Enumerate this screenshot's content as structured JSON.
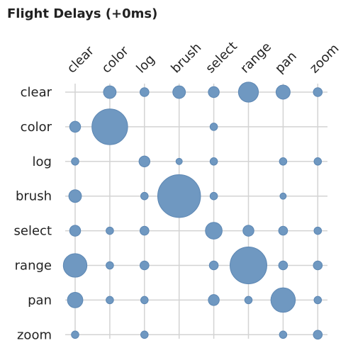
{
  "chart_data": {
    "type": "scatter",
    "title": "Flight Delays (+0ms)",
    "columns": [
      "clear",
      "color",
      "log",
      "brush",
      "select",
      "range",
      "pan",
      "zoom"
    ],
    "rows": [
      "clear",
      "color",
      "log",
      "brush",
      "select",
      "range",
      "pan",
      "zoom"
    ],
    "values": [
      [
        0,
        2,
        1,
        2,
        1.5,
        5,
        2.5,
        1
      ],
      [
        1.5,
        16,
        0,
        0,
        0.7,
        0,
        0,
        0
      ],
      [
        0.7,
        0,
        1.5,
        0.5,
        0.7,
        0,
        0.7,
        0.7
      ],
      [
        2,
        0,
        0.7,
        23,
        0.7,
        0,
        0.5,
        0
      ],
      [
        1.5,
        0.7,
        1,
        0,
        3.5,
        1.5,
        1,
        0.7
      ],
      [
        7,
        0.7,
        1,
        0,
        1,
        17,
        1,
        1
      ],
      [
        3,
        0.7,
        0.7,
        0,
        1.5,
        0.7,
        7.5,
        0.7
      ],
      [
        0.7,
        0,
        0.7,
        0,
        0,
        0,
        0.7,
        1
      ]
    ],
    "grid": true,
    "series_color": "#6f98c1"
  }
}
